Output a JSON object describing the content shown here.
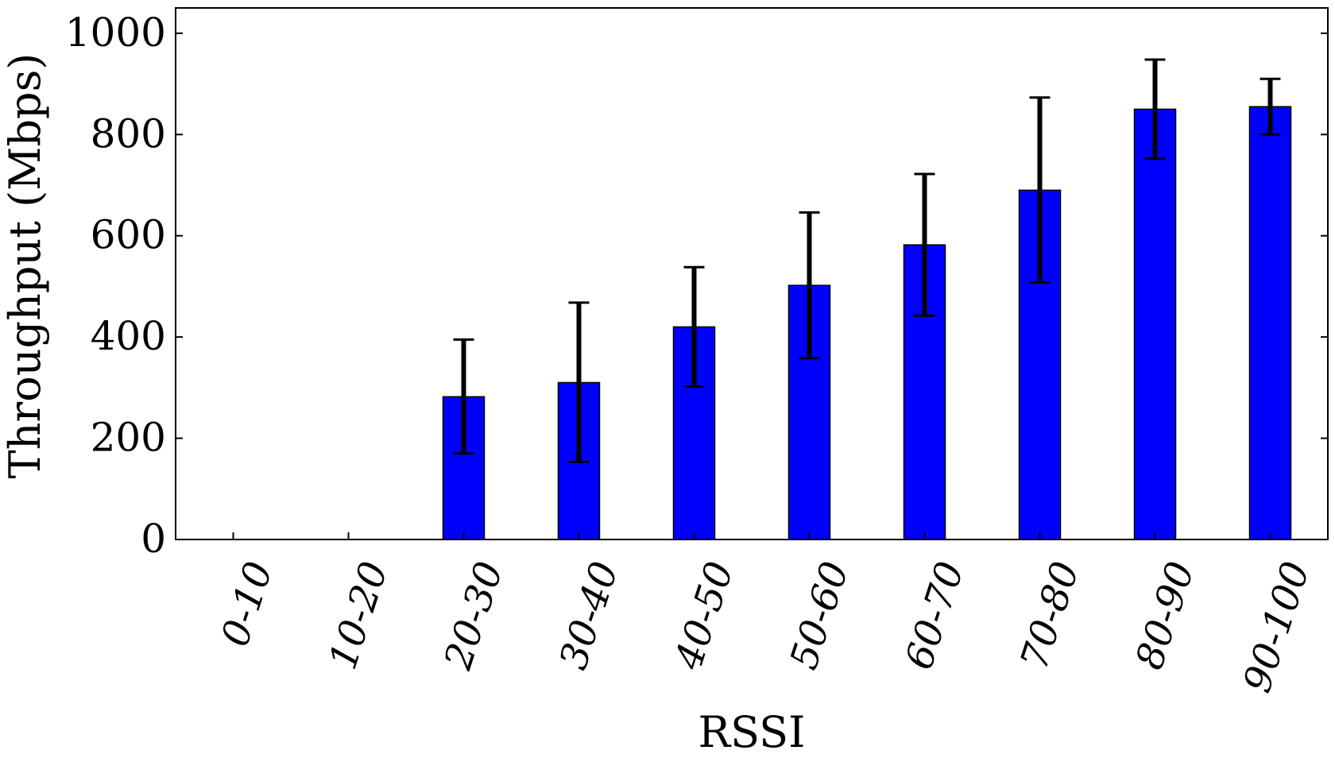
{
  "chart_data": {
    "type": "bar",
    "title": "",
    "xlabel": "RSSI",
    "ylabel": "Throughput (Mbps)",
    "categories": [
      "0-10",
      "10-20",
      "20-30",
      "30-40",
      "40-50",
      "50-60",
      "60-70",
      "70-80",
      "80-90",
      "90-100"
    ],
    "values": [
      0,
      0,
      282,
      310,
      420,
      502,
      582,
      690,
      850,
      855
    ],
    "error_low": [
      0,
      0,
      170,
      153,
      302,
      358,
      442,
      508,
      752,
      800
    ],
    "error_high": [
      0,
      0,
      395,
      468,
      538,
      646,
      722,
      873,
      948,
      910
    ],
    "ylim": [
      0,
      1050
    ],
    "yticks": [
      0,
      200,
      400,
      600,
      800,
      1000
    ],
    "bar_color": "#0000ff",
    "error_color": "#000000",
    "grid": false,
    "legend": false
  }
}
